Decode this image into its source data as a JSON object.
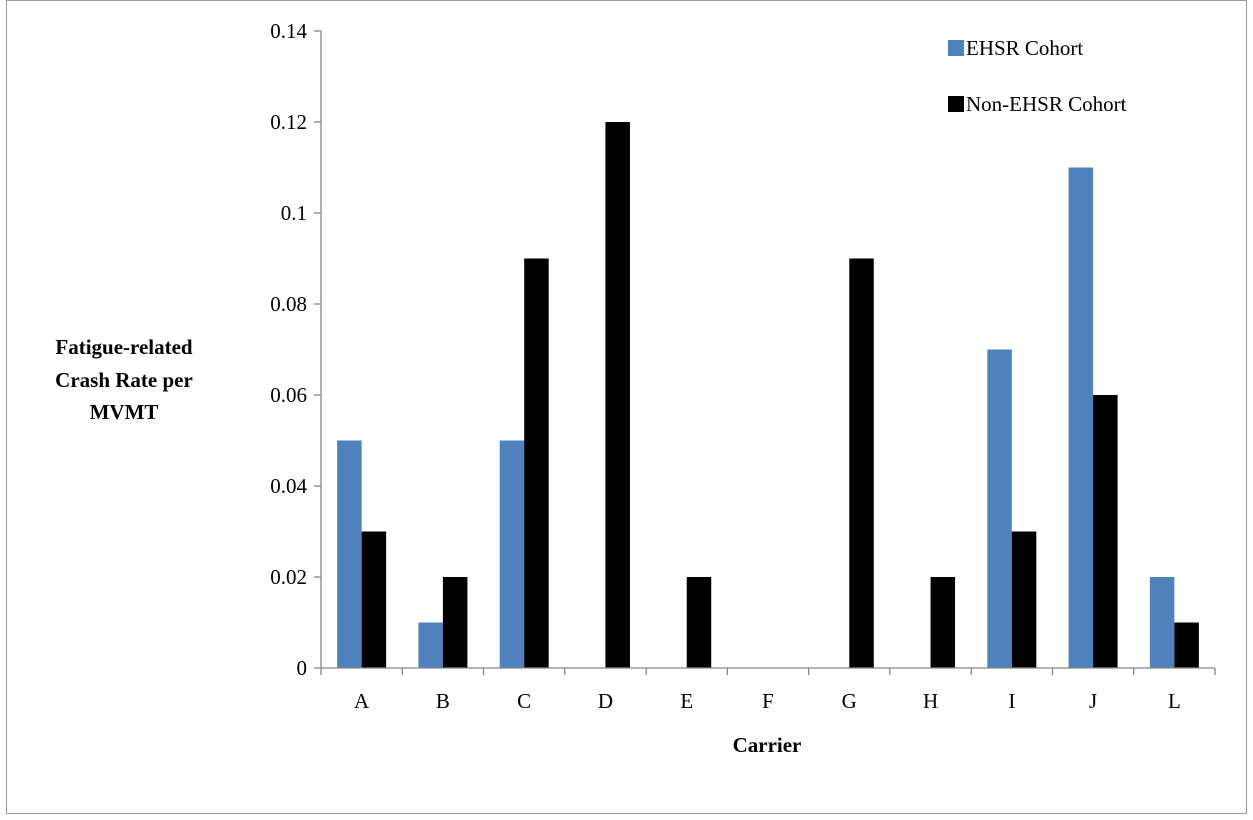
{
  "chart_data": {
    "type": "bar",
    "categories": [
      "A",
      "B",
      "C",
      "D",
      "E",
      "F",
      "G",
      "H",
      "I",
      "J",
      "L"
    ],
    "series": [
      {
        "name": "EHSR Cohort",
        "color": "#4f81bd",
        "values": [
          0.05,
          0.01,
          0.05,
          0,
          0,
          0,
          0,
          0,
          0.07,
          0.11,
          0.02
        ]
      },
      {
        "name": "Non-EHSR Cohort",
        "color": "#000000",
        "values": [
          0.03,
          0.02,
          0.09,
          0.12,
          0.02,
          0,
          0.09,
          0.02,
          0.03,
          0.06,
          0.01
        ]
      }
    ],
    "title": "",
    "xlabel": "Carrier",
    "ylabel_lines": [
      "Fatigue-related",
      "Crash Rate per",
      "MVMT"
    ],
    "ylim": [
      0,
      0.14
    ],
    "yticks": [
      "0",
      "0.02",
      "0.04",
      "0.06",
      "0.08",
      "0.1",
      "0.12",
      "0.14"
    ],
    "grid": false,
    "legend_position": "top-right"
  }
}
